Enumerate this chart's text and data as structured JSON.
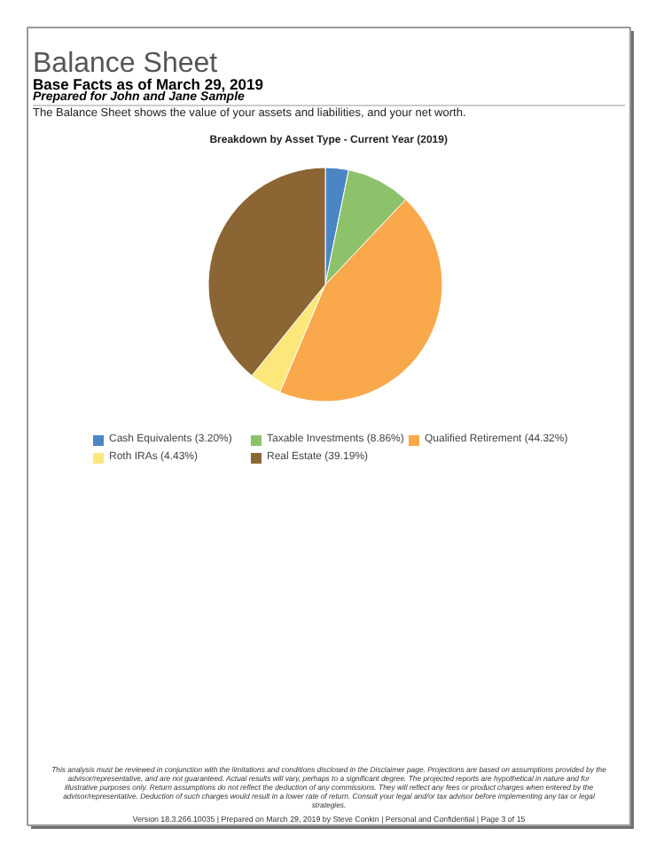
{
  "chart_data": {
    "type": "pie",
    "title": "Breakdown by Asset Type - Current Year (2019)",
    "categories": [
      "Cash Equivalents (3.20%)",
      "Taxable Investments (8.86%)",
      "Qualified Retirement (44.32%)",
      "Roth IRAs (4.43%)",
      "Real Estate (39.19%)"
    ],
    "values": [
      3.2,
      8.86,
      44.32,
      4.43,
      39.19
    ],
    "colors": [
      "#4a86c5",
      "#8dc26a",
      "#f9a94b",
      "#fbe77a",
      "#8b6533"
    ],
    "legend": "bottom",
    "annotations": [
      "Balance Sheet",
      "Base Facts as of March 29, 2019",
      "Prepared for John and Jane Sample",
      "The Balance Sheet shows the value of your assets and liabilities, and your net worth.",
      "This analysis must be reviewed in conjunction with the limitations and conditions disclosed in the Disclaimer page. Projections are based on assumptions provided by the advisor/representative, and are not guaranteed. Actual results will vary, perhaps to a significant degree. The projected reports are hypothetical in nature and for illustrative purposes only. Return assumptions do not reflect the deduction of any commissions. They will reflect any fees or product charges when entered by the advisor/representative. Deduction of such charges would result in a lower rate of return. Consult your legal and/or tax advisor before implementing any tax or legal strategies.",
      "Version 18.3.266.10035 | Prepared on March 29, 2019 by Steve Conkin | Personal and Confidential | Page 3 of 15"
    ]
  }
}
